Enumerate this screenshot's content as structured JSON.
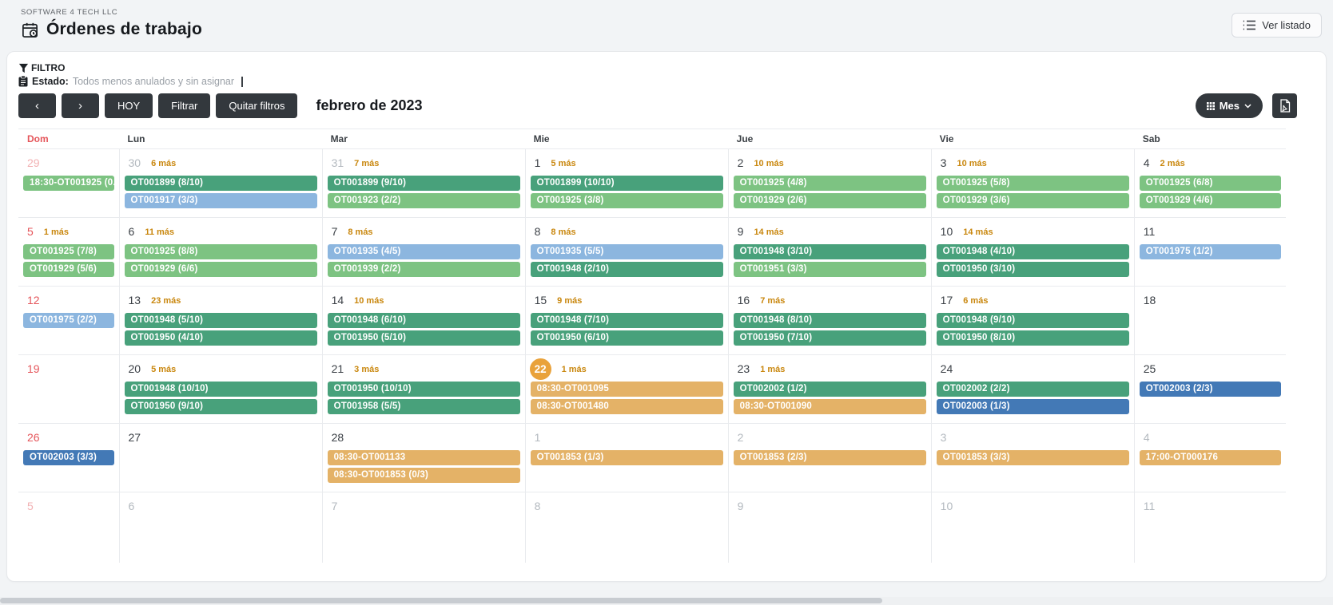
{
  "header": {
    "company": "SOFTWARE 4 TECH LLC",
    "title": "Órdenes de trabajo",
    "view_list_label": "Ver listado"
  },
  "filter": {
    "label": "FILTRO",
    "estado_label": "Estado:",
    "estado_value": "Todos menos anulados y sin asignar"
  },
  "toolbar": {
    "prev_glyph": "‹",
    "next_glyph": "›",
    "today_label": "HOY",
    "filter_label": "Filtrar",
    "clear_label": "Quitar filtros",
    "month_title": "febrero de 2023",
    "view_mode_label": "Mes"
  },
  "calendar": {
    "weekdays": [
      "Dom",
      "Lun",
      "Mar",
      "Mie",
      "Jue",
      "Vie",
      "Sab"
    ],
    "colors": {
      "dg": "#48A17B",
      "lg": "#7DC382",
      "lb": "#8CB6DF",
      "db": "#4379B6",
      "or": "#E4B267",
      "today": "#E9A23B",
      "more": "#C9870E",
      "sunday": "#E5565B",
      "sunday_out": "#F2B1B3",
      "day": "#3A3F45",
      "day_out": "#B3B9BF",
      "button_dark": "#33383D"
    },
    "weeks": [
      [
        {
          "d": "29",
          "t": "os",
          "ev": [
            {
              "x": "18:30-OT001925 (0...",
              "c": "lg"
            }
          ]
        },
        {
          "d": "30",
          "t": "o",
          "more": "6 más",
          "ev": [
            {
              "x": "OT001899 (8/10)",
              "c": "dg"
            },
            {
              "x": "OT001917 (3/3)",
              "c": "lb"
            }
          ]
        },
        {
          "d": "31",
          "t": "o",
          "more": "7 más",
          "ev": [
            {
              "x": "OT001899 (9/10)",
              "c": "dg"
            },
            {
              "x": "OT001923 (2/2)",
              "c": "lg"
            }
          ]
        },
        {
          "d": "1",
          "t": "c",
          "more": "5 más",
          "ev": [
            {
              "x": "OT001899 (10/10)",
              "c": "dg"
            },
            {
              "x": "OT001925 (3/8)",
              "c": "lg"
            }
          ]
        },
        {
          "d": "2",
          "t": "c",
          "more": "10 más",
          "ev": [
            {
              "x": "OT001925 (4/8)",
              "c": "lg"
            },
            {
              "x": "OT001929 (2/6)",
              "c": "lg"
            }
          ]
        },
        {
          "d": "3",
          "t": "c",
          "more": "10 más",
          "ev": [
            {
              "x": "OT001925 (5/8)",
              "c": "lg"
            },
            {
              "x": "OT001929 (3/6)",
              "c": "lg"
            }
          ]
        },
        {
          "d": "4",
          "t": "c",
          "more": "2 más",
          "ev": [
            {
              "x": "OT001925 (6/8)",
              "c": "lg"
            },
            {
              "x": "OT001929 (4/6)",
              "c": "lg"
            }
          ]
        }
      ],
      [
        {
          "d": "5",
          "t": "s",
          "more": "1 más",
          "ev": [
            {
              "x": "OT001925 (7/8)",
              "c": "lg"
            },
            {
              "x": "OT001929 (5/6)",
              "c": "lg"
            }
          ]
        },
        {
          "d": "6",
          "t": "c",
          "more": "11 más",
          "ev": [
            {
              "x": "OT001925 (8/8)",
              "c": "lg"
            },
            {
              "x": "OT001929 (6/6)",
              "c": "lg"
            }
          ]
        },
        {
          "d": "7",
          "t": "c",
          "more": "8 más",
          "ev": [
            {
              "x": "OT001935 (4/5)",
              "c": "lb"
            },
            {
              "x": "OT001939 (2/2)",
              "c": "lg"
            }
          ]
        },
        {
          "d": "8",
          "t": "c",
          "more": "8 más",
          "ev": [
            {
              "x": "OT001935 (5/5)",
              "c": "lb"
            },
            {
              "x": "OT001948 (2/10)",
              "c": "dg"
            }
          ]
        },
        {
          "d": "9",
          "t": "c",
          "more": "14 más",
          "ev": [
            {
              "x": "OT001948 (3/10)",
              "c": "dg"
            },
            {
              "x": "OT001951 (3/3)",
              "c": "lg"
            }
          ]
        },
        {
          "d": "10",
          "t": "c",
          "more": "14 más",
          "ev": [
            {
              "x": "OT001948 (4/10)",
              "c": "dg"
            },
            {
              "x": "OT001950 (3/10)",
              "c": "dg"
            }
          ]
        },
        {
          "d": "11",
          "t": "c",
          "ev": [
            {
              "x": "OT001975 (1/2)",
              "c": "lb"
            }
          ]
        }
      ],
      [
        {
          "d": "12",
          "t": "s",
          "ev": [
            {
              "x": "OT001975 (2/2)",
              "c": "lb"
            }
          ]
        },
        {
          "d": "13",
          "t": "c",
          "more": "23 más",
          "ev": [
            {
              "x": "OT001948 (5/10)",
              "c": "dg"
            },
            {
              "x": "OT001950 (4/10)",
              "c": "dg"
            }
          ]
        },
        {
          "d": "14",
          "t": "c",
          "more": "10 más",
          "ev": [
            {
              "x": "OT001948 (6/10)",
              "c": "dg"
            },
            {
              "x": "OT001950 (5/10)",
              "c": "dg"
            }
          ]
        },
        {
          "d": "15",
          "t": "c",
          "more": "9 más",
          "ev": [
            {
              "x": "OT001948 (7/10)",
              "c": "dg"
            },
            {
              "x": "OT001950 (6/10)",
              "c": "dg"
            }
          ]
        },
        {
          "d": "16",
          "t": "c",
          "more": "7 más",
          "ev": [
            {
              "x": "OT001948 (8/10)",
              "c": "dg"
            },
            {
              "x": "OT001950 (7/10)",
              "c": "dg"
            }
          ]
        },
        {
          "d": "17",
          "t": "c",
          "more": "6 más",
          "ev": [
            {
              "x": "OT001948 (9/10)",
              "c": "dg"
            },
            {
              "x": "OT001950 (8/10)",
              "c": "dg"
            }
          ]
        },
        {
          "d": "18",
          "t": "c",
          "ev": []
        }
      ],
      [
        {
          "d": "19",
          "t": "s",
          "ev": []
        },
        {
          "d": "20",
          "t": "c",
          "more": "5 más",
          "ev": [
            {
              "x": "OT001948 (10/10)",
              "c": "dg"
            },
            {
              "x": "OT001950 (9/10)",
              "c": "dg"
            }
          ]
        },
        {
          "d": "21",
          "t": "c",
          "more": "3 más",
          "ev": [
            {
              "x": "OT001950 (10/10)",
              "c": "dg"
            },
            {
              "x": "OT001958 (5/5)",
              "c": "dg"
            }
          ]
        },
        {
          "d": "22",
          "t": "today",
          "more": "1 más",
          "ev": [
            {
              "x": "08:30-OT001095",
              "c": "or"
            },
            {
              "x": "08:30-OT001480",
              "c": "or"
            }
          ]
        },
        {
          "d": "23",
          "t": "c",
          "more": "1 más",
          "ev": [
            {
              "x": "OT002002 (1/2)",
              "c": "dg"
            },
            {
              "x": "08:30-OT001090",
              "c": "or"
            }
          ]
        },
        {
          "d": "24",
          "t": "c",
          "ev": [
            {
              "x": "OT002002 (2/2)",
              "c": "dg"
            },
            {
              "x": "OT002003 (1/3)",
              "c": "db"
            }
          ]
        },
        {
          "d": "25",
          "t": "c",
          "ev": [
            {
              "x": "OT002003 (2/3)",
              "c": "db"
            }
          ]
        }
      ],
      [
        {
          "d": "26",
          "t": "s",
          "ev": [
            {
              "x": "OT002003 (3/3)",
              "c": "db"
            }
          ]
        },
        {
          "d": "27",
          "t": "c",
          "ev": []
        },
        {
          "d": "28",
          "t": "c",
          "ev": [
            {
              "x": "08:30-OT001133",
              "c": "or"
            },
            {
              "x": "08:30-OT001853 (0/3)",
              "c": "or"
            }
          ]
        },
        {
          "d": "1",
          "t": "o",
          "ev": [
            {
              "x": "OT001853 (1/3)",
              "c": "or"
            }
          ]
        },
        {
          "d": "2",
          "t": "o",
          "ev": [
            {
              "x": "OT001853 (2/3)",
              "c": "or"
            }
          ]
        },
        {
          "d": "3",
          "t": "o",
          "ev": [
            {
              "x": "OT001853 (3/3)",
              "c": "or"
            }
          ]
        },
        {
          "d": "4",
          "t": "o",
          "ev": [
            {
              "x": "17:00-OT000176",
              "c": "or"
            }
          ]
        }
      ],
      [
        {
          "d": "5",
          "t": "os",
          "ev": []
        },
        {
          "d": "6",
          "t": "o",
          "ev": []
        },
        {
          "d": "7",
          "t": "o",
          "ev": []
        },
        {
          "d": "8",
          "t": "o",
          "ev": []
        },
        {
          "d": "9",
          "t": "o",
          "ev": []
        },
        {
          "d": "10",
          "t": "o",
          "ev": []
        },
        {
          "d": "11",
          "t": "o",
          "ev": []
        }
      ]
    ]
  }
}
